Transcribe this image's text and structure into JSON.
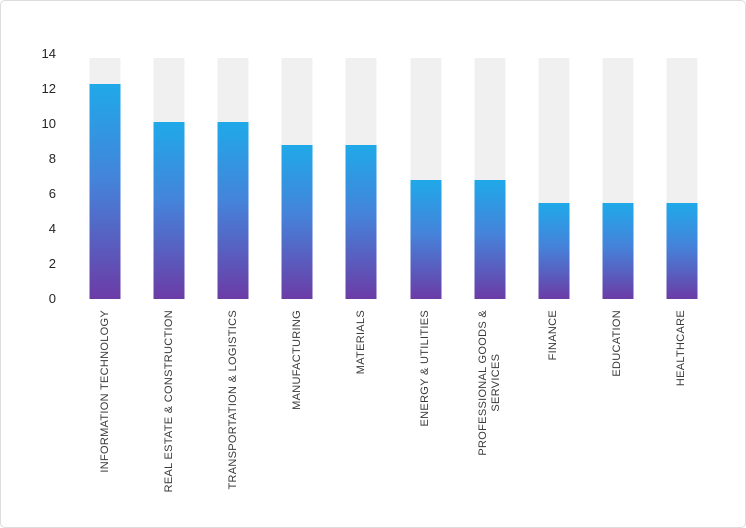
{
  "chart_data": {
    "type": "bar",
    "categories": [
      "INFORMATION TECHNOLOGY",
      "REAL ESTATE & CONSTRUCTION",
      "TRANSPORTATION & LOGISTICS",
      "MANUFACTURING",
      "MATERIALS",
      "ENERGY & UTILITIES",
      "PROFESSIONAL GOODS &\nSERVICES",
      "FINANCE",
      "EDUCATION",
      "HEALTHCARE"
    ],
    "values": [
      12.3,
      10.1,
      10.1,
      8.8,
      8.8,
      6.8,
      6.8,
      5.5,
      5.5,
      5.5
    ],
    "y_ticks": [
      0,
      2,
      4,
      6,
      8,
      10,
      12,
      14
    ],
    "ylim": [
      0,
      14
    ],
    "background_track_top": 13.8,
    "grid": false,
    "legend_position": "none",
    "bar_orientation": "vertical",
    "colors": {
      "bar_gradient_top": "#1fa9e9",
      "bar_gradient_mid": "#4583da",
      "bar_gradient_bottom": "#6b3ca6",
      "track": "#f0f0f0",
      "tick_label": "#262626",
      "category_label": "#3a3a3a",
      "canvas_border": "#dcdcdc",
      "background": "#ffffff"
    }
  }
}
